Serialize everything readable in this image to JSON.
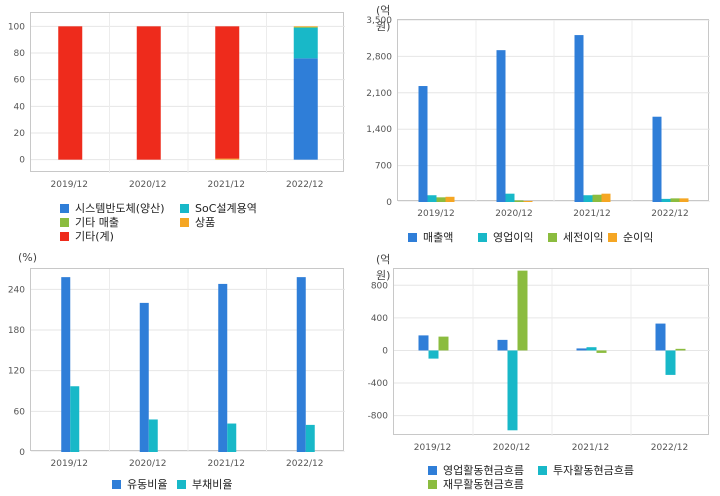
{
  "chart_data": [
    {
      "type": "bar",
      "stacked": true,
      "unit": "",
      "categories": [
        "2019/12",
        "2020/12",
        "2021/12",
        "2022/12"
      ],
      "ylim": [
        -10,
        110
      ],
      "yticks": [
        0,
        20,
        40,
        60,
        80,
        100
      ],
      "series": [
        {
          "name": "시스템반도체(양산)",
          "color": "#2f7ed8",
          "values": [
            0,
            0,
            0,
            76
          ]
        },
        {
          "name": "SoC설계용역",
          "color": "#18b8c8",
          "values": [
            0,
            0,
            0,
            23
          ]
        },
        {
          "name": "기타 매출",
          "color": "#8bbc3f",
          "values": [
            0,
            0,
            0,
            0.5
          ]
        },
        {
          "name": "상품",
          "color": "#f5a623",
          "values": [
            0,
            0,
            0.8,
            0.5
          ]
        },
        {
          "name": "기타(계)",
          "color": "#ee2b1c",
          "values": [
            100,
            100,
            99.2,
            0
          ]
        }
      ]
    },
    {
      "type": "bar",
      "unit": "(억원)",
      "categories": [
        "2019/12",
        "2020/12",
        "2021/12",
        "2022/12"
      ],
      "ylim": [
        0,
        3500
      ],
      "yticks": [
        0,
        700,
        1400,
        2100,
        2800,
        3500
      ],
      "series": [
        {
          "name": "매출액",
          "color": "#2f7ed8",
          "values": [
            2230,
            2920,
            3210,
            1640
          ]
        },
        {
          "name": "영업이익",
          "color": "#18b8c8",
          "values": [
            130,
            160,
            130,
            60
          ]
        },
        {
          "name": "세전이익",
          "color": "#8bbc3f",
          "values": [
            90,
            30,
            140,
            70
          ]
        },
        {
          "name": "순이익",
          "color": "#f5a623",
          "values": [
            100,
            20,
            160,
            70
          ]
        }
      ]
    },
    {
      "type": "bar",
      "unit": "(%)",
      "categories": [
        "2019/12",
        "2020/12",
        "2021/12",
        "2022/12"
      ],
      "ylim": [
        0,
        270
      ],
      "yticks": [
        0,
        60,
        120,
        180,
        240
      ],
      "series": [
        {
          "name": "유동비율",
          "color": "#2f7ed8",
          "values": [
            258,
            220,
            248,
            258
          ]
        },
        {
          "name": "부채비율",
          "color": "#18b8c8",
          "values": [
            97,
            48,
            42,
            40
          ]
        }
      ]
    },
    {
      "type": "bar",
      "unit": "(억원)",
      "categories": [
        "2019/12",
        "2020/12",
        "2021/12",
        "2022/12"
      ],
      "ylim": [
        -1050,
        1000
      ],
      "yticks": [
        -800,
        -400,
        0,
        400,
        800
      ],
      "series": [
        {
          "name": "영업활동현금흐름",
          "color": "#2f7ed8",
          "values": [
            185,
            130,
            25,
            330
          ]
        },
        {
          "name": "투자활동현금흐름",
          "color": "#18b8c8",
          "values": [
            -100,
            -980,
            40,
            -300
          ]
        },
        {
          "name": "재무활동현금흐름",
          "color": "#8bbc3f",
          "values": [
            170,
            980,
            -30,
            20
          ]
        }
      ]
    }
  ]
}
